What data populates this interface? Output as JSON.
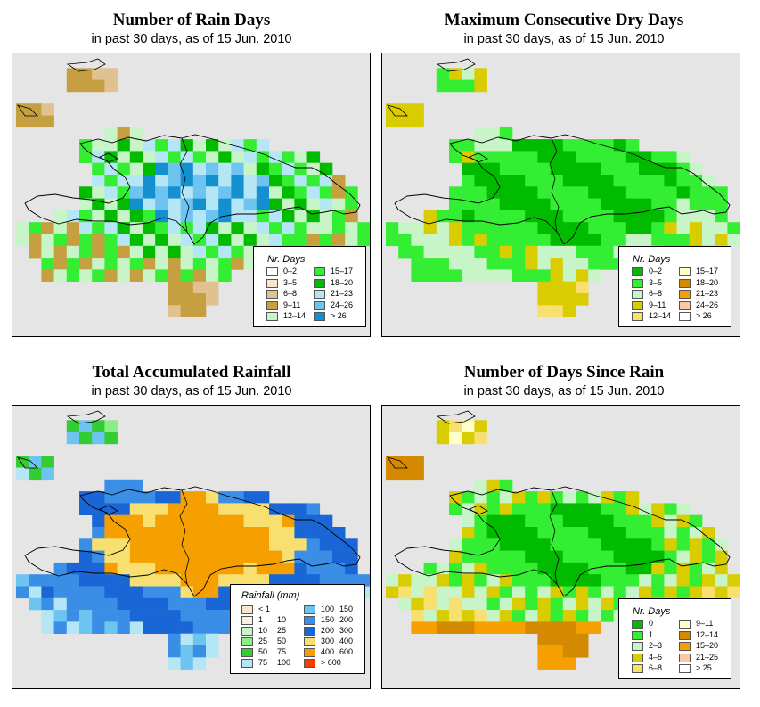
{
  "panels": [
    {
      "id": "rain-days",
      "title": "Number of Rain Days",
      "subtitle": "in past 30 days, as of  15 Jun. 2010",
      "legend": {
        "title": "Nr. Days",
        "items": [
          {
            "label": "0–2",
            "color": "#ffffff"
          },
          {
            "label": "3–5",
            "color": "#f5e6cc"
          },
          {
            "label": "6–8",
            "color": "#dfc28f"
          },
          {
            "label": "9–11",
            "color": "#c6a040"
          },
          {
            "label": "12–14",
            "color": "#c8f5c8"
          },
          {
            "label": "15–17",
            "color": "#33ee33"
          },
          {
            "label": "18–20",
            "color": "#00bb00"
          },
          {
            "label": "21–23",
            "color": "#b5e6f5"
          },
          {
            "label": "24–26",
            "color": "#6ec4f0"
          },
          {
            "label": "> 26",
            "color": "#1490d0"
          }
        ]
      }
    },
    {
      "id": "dry-days",
      "title": "Maximum Consecutive Dry Days",
      "subtitle": "in past 30 days, as of  15 Jun. 2010",
      "legend": {
        "title": "Nr. Days",
        "items": [
          {
            "label": "0–2",
            "color": "#00bb00"
          },
          {
            "label": "3–5",
            "color": "#33ee33"
          },
          {
            "label": "6–8",
            "color": "#c8f5c8"
          },
          {
            "label": "9–11",
            "color": "#d9cc00"
          },
          {
            "label": "12–14",
            "color": "#f8e070"
          },
          {
            "label": "15–17",
            "color": "#ffffc8"
          },
          {
            "label": "18–20",
            "color": "#d48a00"
          },
          {
            "label": "21–23",
            "color": "#f5a000"
          },
          {
            "label": "24–26",
            "color": "#f8c8a8"
          },
          {
            "label": "> 26",
            "color": "#ffffff"
          }
        ]
      }
    },
    {
      "id": "rainfall",
      "title": "Total Accumulated Rainfall",
      "subtitle": "in past 30 days, as of  15 Jun. 2010",
      "legend": {
        "title": "Rainfall (mm)",
        "items": [
          {
            "a": "< 1",
            "b": "",
            "color": "#f5e6cc"
          },
          {
            "a": "1",
            "b": "10",
            "color": "#f8f0e0"
          },
          {
            "a": "10",
            "b": "25",
            "color": "#c8f5c8"
          },
          {
            "a": "25",
            "b": "50",
            "color": "#88ee88"
          },
          {
            "a": "50",
            "b": "75",
            "color": "#33cc33"
          },
          {
            "a": "75",
            "b": "100",
            "color": "#b5e6f5"
          },
          {
            "a": "100",
            "b": "150",
            "color": "#6ec4f0"
          },
          {
            "a": "150",
            "b": "200",
            "color": "#3a8ee6"
          },
          {
            "a": "200",
            "b": "300",
            "color": "#1a66d6"
          },
          {
            "a": "300",
            "b": "400",
            "color": "#f8e070"
          },
          {
            "a": "400",
            "b": "600",
            "color": "#f5a000"
          },
          {
            "a": "> 600",
            "b": "",
            "color": "#f04000"
          }
        ]
      }
    },
    {
      "id": "days-since-rain",
      "title": "Number of Days Since Rain",
      "subtitle": "in past 30 days, as of  15 Jun. 2010",
      "legend": {
        "title": "Nr. Days",
        "items": [
          {
            "label": "0",
            "color": "#00bb00"
          },
          {
            "label": "1",
            "color": "#33ee33"
          },
          {
            "label": "2–3",
            "color": "#c8f5c8"
          },
          {
            "label": "4–5",
            "color": "#d9cc00"
          },
          {
            "label": "6–8",
            "color": "#f8e070"
          },
          {
            "label": "9–11",
            "color": "#ffffc8"
          },
          {
            "label": "12–14",
            "color": "#d48a00"
          },
          {
            "label": "15–20",
            "color": "#f5a000"
          },
          {
            "label": "21–25",
            "color": "#f8c8a8"
          },
          {
            "label": "> 25",
            "color": "#ffffff"
          }
        ]
      }
    }
  ]
}
